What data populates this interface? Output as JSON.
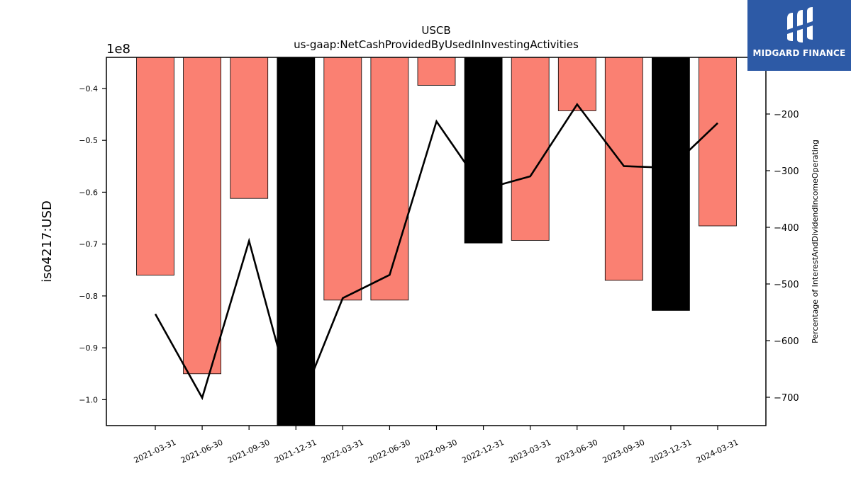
{
  "brand": {
    "name": "MIDGARD FINANCE",
    "color": "#2d5aa6"
  },
  "chart_data": {
    "type": "bar",
    "title": "USCB",
    "subtitle": "us-gaap:NetCashProvidedByUsedInInvestingActivities",
    "ylabel": "iso4217:USD",
    "y2label": "Percentage of InterestAndDividendIncomeOperating",
    "scale_label": "1e8",
    "categories": [
      "2021-03-31",
      "2021-06-30",
      "2021-09-30",
      "2021-12-31",
      "2022-03-31",
      "2022-06-30",
      "2022-09-30",
      "2022-12-31",
      "2023-03-31",
      "2023-06-30",
      "2023-09-30",
      "2023-12-31",
      "2024-03-31"
    ],
    "ylim": [
      -1.05,
      -0.34
    ],
    "y2lim": [
      -750,
      -100
    ],
    "yticks": [
      -1.0,
      -0.9,
      -0.8,
      -0.7,
      -0.6,
      -0.5,
      -0.4
    ],
    "ytick_labels": [
      "−1.0",
      "−0.9",
      "−0.8",
      "−0.7",
      "−0.6",
      "−0.5",
      "−0.4"
    ],
    "y2ticks": [
      -700,
      -600,
      -500,
      -400,
      -300,
      -200
    ],
    "y2tick_labels": [
      "−700",
      "−600",
      "−500",
      "−400",
      "−300",
      "−200"
    ],
    "series": [
      {
        "values": [
          -0.76,
          -0.95,
          -0.612,
          -1.07,
          -0.808,
          -0.808,
          -0.394,
          -0.698,
          -0.693,
          -0.443,
          -0.77,
          -0.828,
          -0.665
        ],
        "colors": [
          "#fa8072",
          "#fa8072",
          "#fa8072",
          "#000000",
          "#fa8072",
          "#fa8072",
          "#fa8072",
          "#000000",
          "#fa8072",
          "#fa8072",
          "#fa8072",
          "#000000",
          "#fa8072"
        ],
        "axis": "left",
        "type": "bar"
      },
      {
        "values": [
          -553,
          -701,
          -424,
          -730,
          -525,
          -484,
          -213,
          -333,
          -310,
          -183,
          -292,
          -295,
          -216
        ],
        "color": "#000000",
        "axis": "right",
        "type": "line"
      }
    ],
    "grid": false,
    "legend": "none"
  }
}
